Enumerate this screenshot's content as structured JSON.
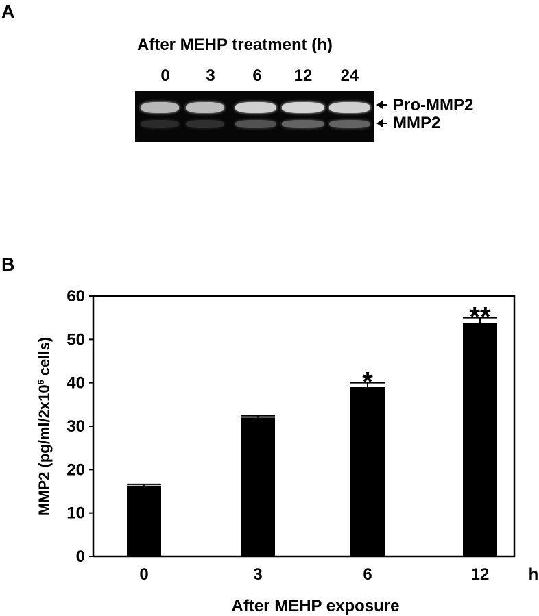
{
  "panel_a": {
    "letter": "A",
    "title": "After MEHP treatment (h)",
    "lanes": [
      "0",
      "3",
      "6",
      "12",
      "24"
    ],
    "bands": [
      {
        "label": "Pro-MMP2",
        "intensity": [
          0.78,
          0.8,
          0.88,
          0.9,
          0.88
        ]
      },
      {
        "label": "MMP2",
        "intensity": [
          0.18,
          0.2,
          0.35,
          0.42,
          0.42
        ]
      }
    ]
  },
  "panel_b": {
    "letter": "B"
  },
  "chart_data": {
    "type": "bar",
    "categories": [
      "0",
      "3",
      "6",
      "12"
    ],
    "values": [
      16.3,
      32.0,
      39.0,
      53.8
    ],
    "errors": [
      0.3,
      0.4,
      1.0,
      1.2
    ],
    "significance": [
      "",
      "",
      "*",
      "**"
    ],
    "xlabel": "After MEHP exposure",
    "x_unit": "h",
    "ylabel_main": "MMP2 (pg/ml/2x10",
    "ylabel_sup": "6",
    "ylabel_end": " cells)",
    "ylim": [
      0,
      60
    ],
    "yticks": [
      "0",
      "10",
      "20",
      "30",
      "40",
      "50",
      "60"
    ],
    "grid": false,
    "bar_color": "#000000"
  }
}
